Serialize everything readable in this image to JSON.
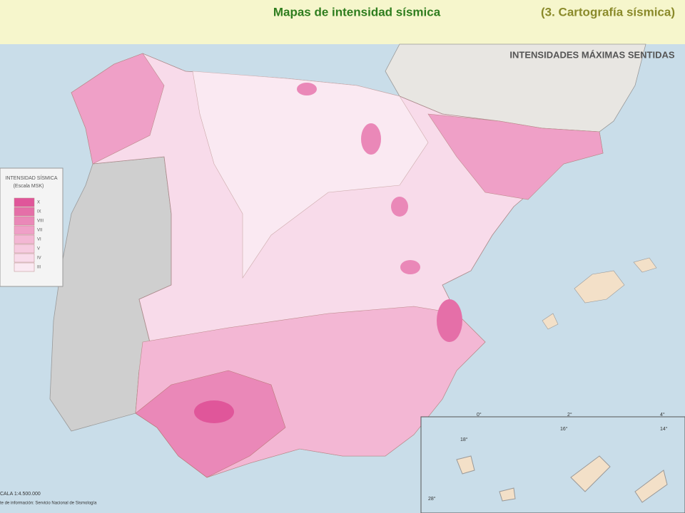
{
  "header": {
    "title": "Mapas de intensidad sísmica",
    "subtitle": "(3. Cartografía sísmica)"
  },
  "map": {
    "title": "INTENSIDADES MÁXIMAS SENTIDAS",
    "legend": {
      "title": "INTENSIDAD SÍSMICA",
      "subtitle": "(Escala MSK)",
      "items": [
        {
          "label": "X",
          "color": "#e0569a"
        },
        {
          "label": "IX",
          "color": "#e56fa8"
        },
        {
          "label": "VIII",
          "color": "#ea88b8"
        },
        {
          "label": "VII",
          "color": "#efa0c7"
        },
        {
          "label": "VI",
          "color": "#f3b7d4"
        },
        {
          "label": "V",
          "color": "#f6cbe0"
        },
        {
          "label": "IV",
          "color": "#f8dbea"
        },
        {
          "label": "III",
          "color": "#fae9f2"
        }
      ]
    },
    "scale": "CALA 1:4.500.000",
    "source": "te de información: Servicio Nacional de Sismología",
    "coordinates": [
      "0°",
      "2°",
      "4°",
      "16°",
      "14°",
      "18°",
      "28°"
    ]
  }
}
